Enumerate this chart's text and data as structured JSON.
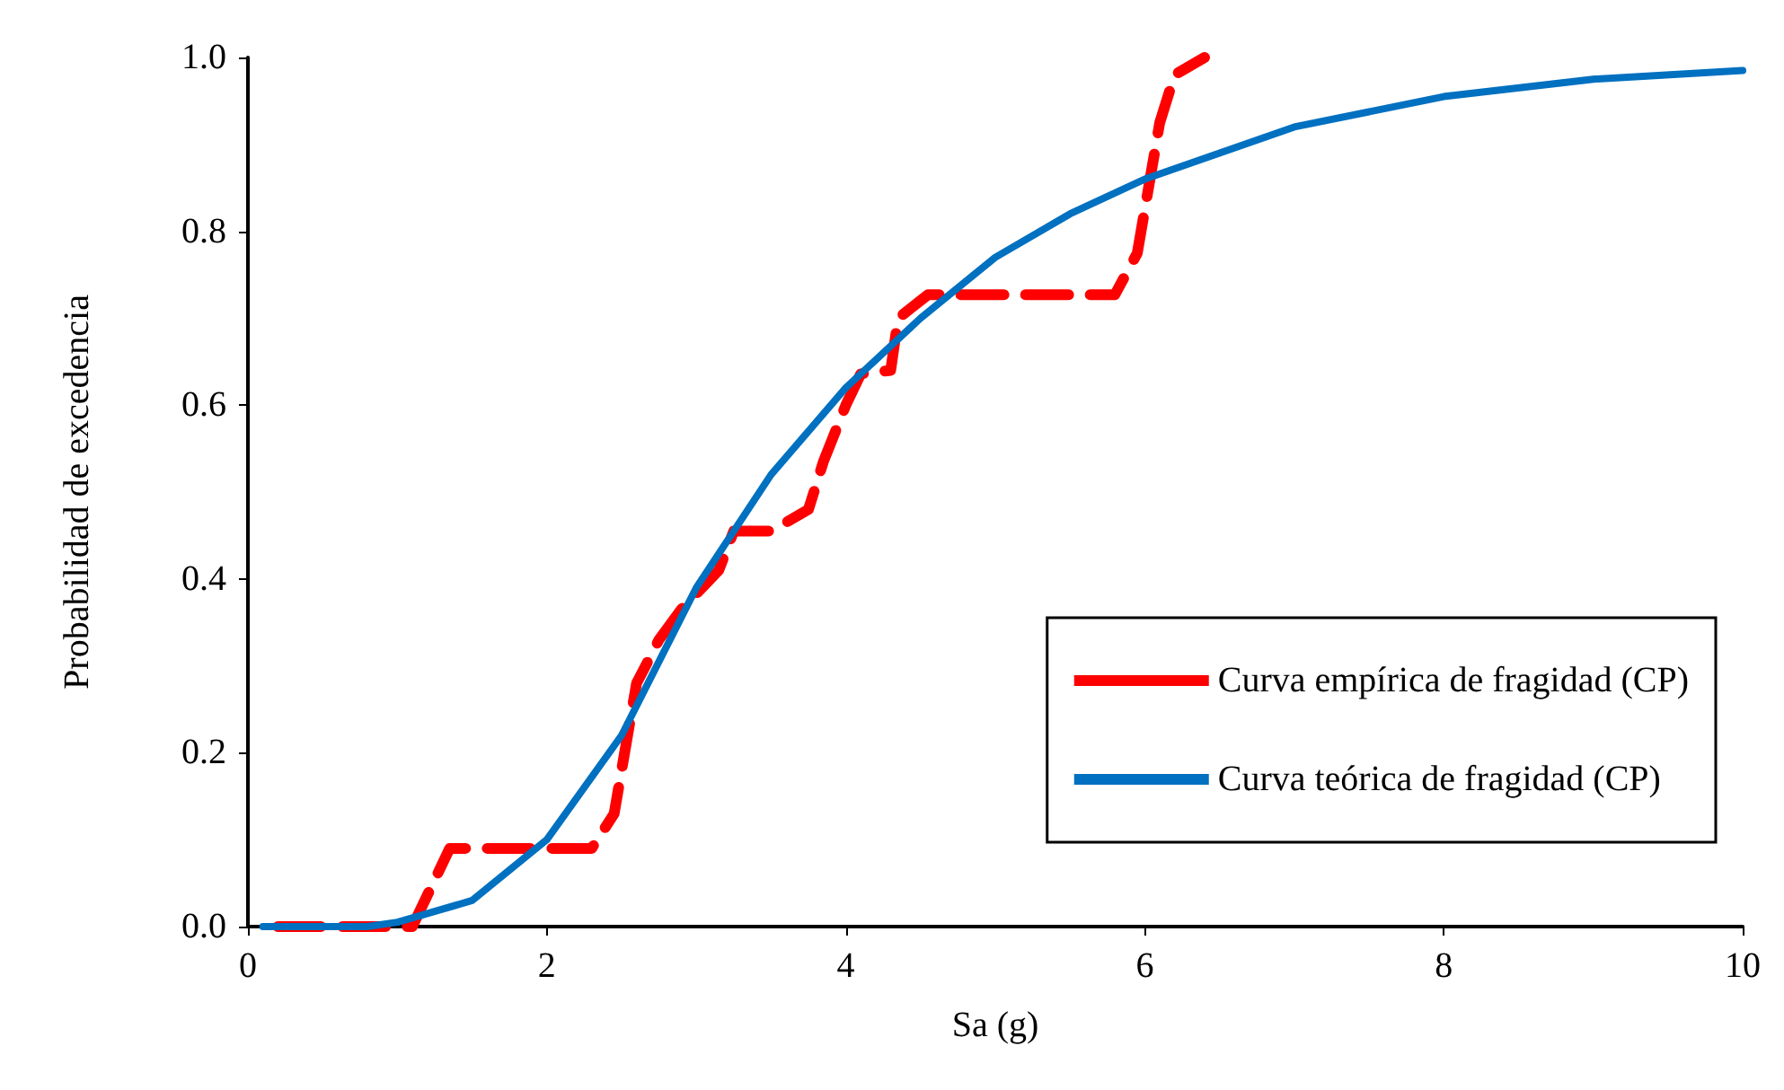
{
  "chart_data": {
    "type": "line",
    "xlabel": "Sa (g)",
    "ylabel": "Probabilidad de excedencia",
    "xlim": [
      0,
      10
    ],
    "xticks": [
      0,
      2,
      4,
      6,
      8,
      10
    ],
    "ylim": [
      0,
      1
    ],
    "yticks": [
      {
        "value": 0,
        "label": "0.0"
      },
      {
        "value": 0.2,
        "label": "0.2"
      },
      {
        "value": 0.4,
        "label": "0.4"
      },
      {
        "value": 0.6,
        "label": "0.6"
      },
      {
        "value": 0.8,
        "label": "0.8"
      },
      {
        "value": 1,
        "label": "1.0"
      }
    ],
    "grid": false,
    "legend": "bottom right",
    "marker": "none",
    "series": [
      {
        "name": "Curva empírica de fragidad (CP)",
        "color": "#ff0000",
        "line_style": "dashed",
        "x": [
          0.2,
          1.1,
          1.35,
          2.0,
          2.3,
          2.45,
          2.6,
          2.75,
          2.9,
          3.15,
          3.25,
          3.5,
          3.75,
          3.85,
          4.0,
          4.1,
          4.3,
          4.35,
          4.55,
          5.45,
          5.8,
          5.95,
          6.1,
          6.2,
          6.4
        ],
        "values": [
          0,
          0,
          0.09,
          0.09,
          0.09,
          0.13,
          0.28,
          0.33,
          0.365,
          0.41,
          0.455,
          0.455,
          0.48,
          0.535,
          0.6,
          0.636,
          0.64,
          0.7,
          0.727,
          0.727,
          0.727,
          0.775,
          0.925,
          0.98,
          1.0
        ]
      },
      {
        "name": "Curva teórica de fragidad (CP)",
        "color": "#0070c0",
        "line_style": "solid",
        "x": [
          0.1,
          0.8,
          1.0,
          1.5,
          2.0,
          2.5,
          3.0,
          3.5,
          4.0,
          4.5,
          5.0,
          5.5,
          6.0,
          6.5,
          7.0,
          8.0,
          9.0,
          10.0
        ],
        "values": [
          0,
          0,
          0.005,
          0.03,
          0.1,
          0.22,
          0.39,
          0.52,
          0.62,
          0.7,
          0.77,
          0.82,
          0.86,
          0.89,
          0.92,
          0.955,
          0.975,
          0.985
        ]
      }
    ]
  }
}
